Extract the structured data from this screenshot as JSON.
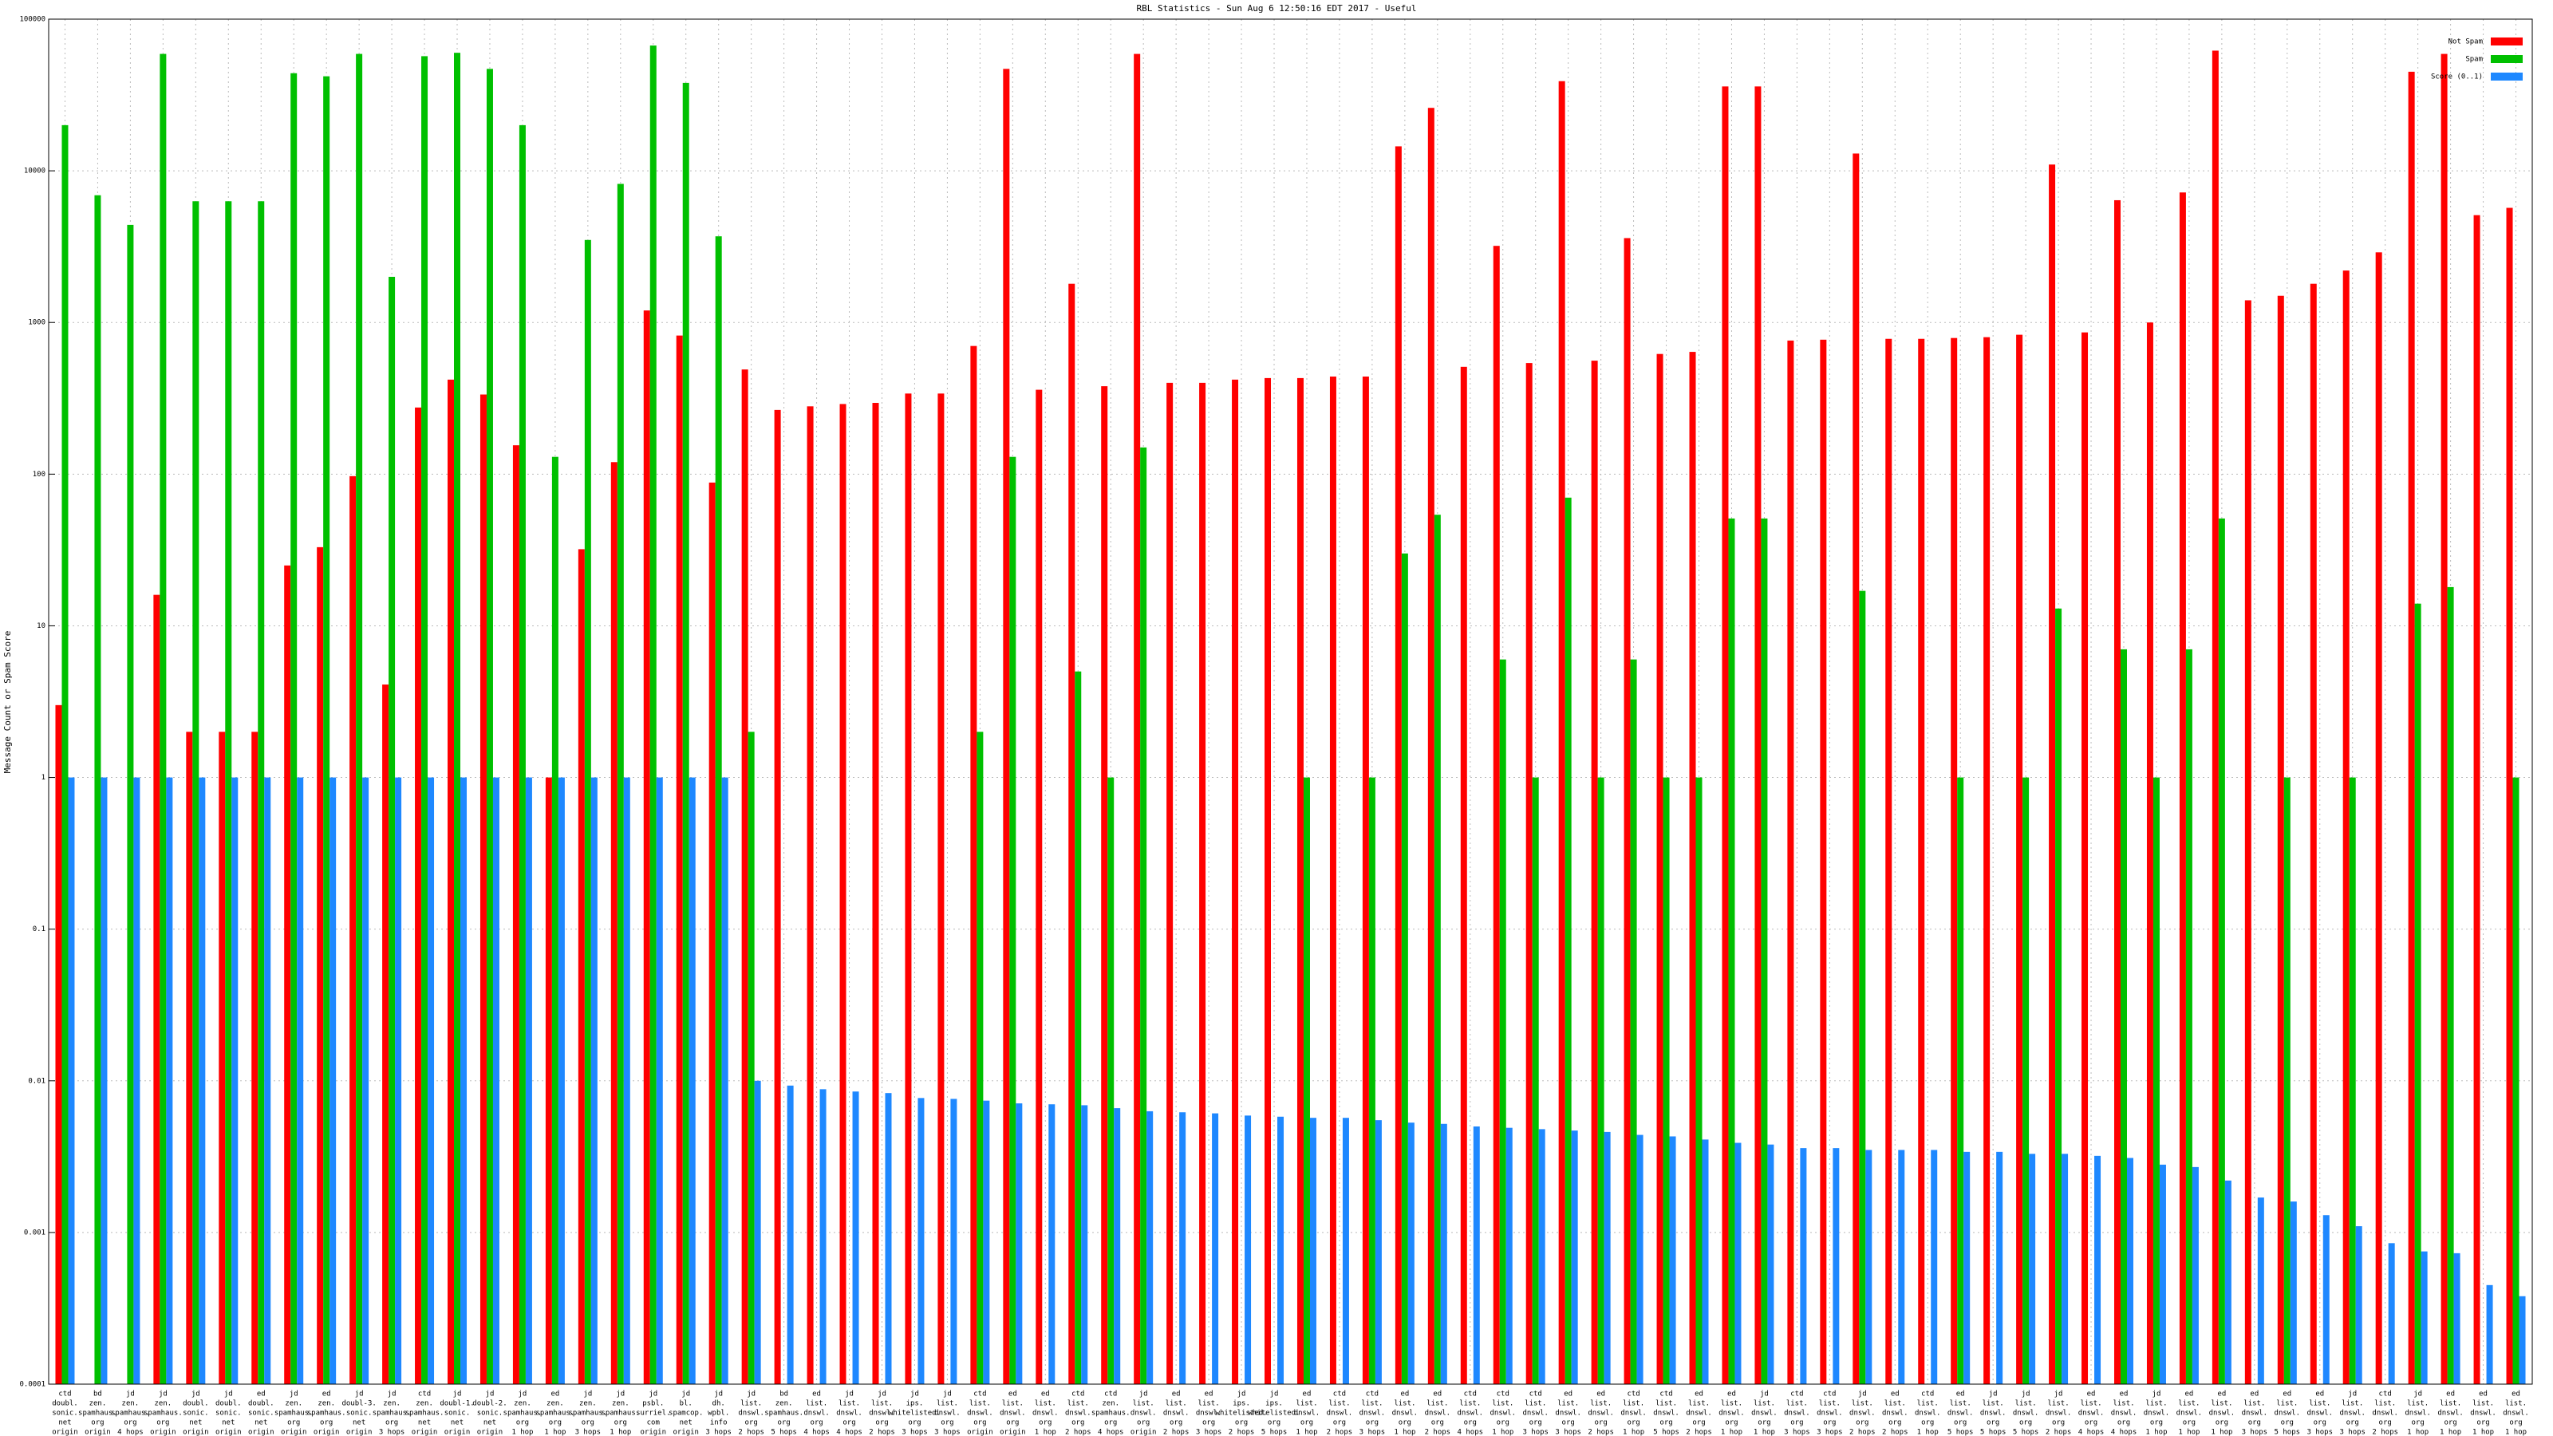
{
  "chart_data": {
    "type": "bar",
    "log_y": true,
    "grid": true,
    "legend": "top-right",
    "title": "RBL Statistics - Sun Aug  6 12:50:16 EDT 2017 - Useful",
    "y_label": "Message Count or Spam Score",
    "ylim": [
      0.0001,
      100000
    ],
    "yticks": [
      0.0001,
      0.001,
      0.01,
      0.1,
      1,
      10,
      100,
      1000,
      10000,
      100000
    ],
    "categories": [
      [
        "ctd",
        "doubl.",
        "sonic.",
        "net",
        "origin"
      ],
      [
        "bd",
        "zen.",
        "spamhaus.",
        "org",
        "origin"
      ],
      [
        "jd",
        "zen.",
        "spamhaus.",
        "org",
        "4 hops"
      ],
      [
        "jd",
        "zen.",
        "spamhaus.",
        "org",
        "origin"
      ],
      [
        "jd",
        "doubl.",
        "sonic.",
        "net",
        "origin"
      ],
      [
        "jd",
        "doubl.",
        "sonic.",
        "net",
        "origin"
      ],
      [
        "ed",
        "doubl.",
        "sonic.",
        "net",
        "origin"
      ],
      [
        "jd",
        "zen.",
        "spamhaus.",
        "org",
        "origin"
      ],
      [
        "ed",
        "zen.",
        "spamhaus.",
        "org",
        "origin"
      ],
      [
        "jd",
        "doubl-3.",
        "sonic.",
        "net",
        "origin"
      ],
      [
        "jd",
        "zen.",
        "spamhaus.",
        "org",
        "3 hops"
      ],
      [
        "ctd",
        "zen.",
        "spamhaus.",
        "net",
        "origin"
      ],
      [
        "jd",
        "doubl-1.",
        "sonic.",
        "net",
        "origin"
      ],
      [
        "jd",
        "doubl-2.",
        "sonic.",
        "net",
        "origin"
      ],
      [
        "jd",
        "zen.",
        "spamhaus.",
        "org",
        "1 hop"
      ],
      [
        "ed",
        "zen.",
        "spamhaus.",
        "org",
        "1 hop"
      ],
      [
        "jd",
        "zen.",
        "spamhaus.",
        "org",
        "3 hops"
      ],
      [
        "jd",
        "zen.",
        "spamhaus.",
        "org",
        "1 hop"
      ],
      [
        "jd",
        "psbl.",
        "surriel.",
        "com",
        "origin"
      ],
      [
        "jd",
        "bl.",
        "spamcop.",
        "net",
        "origin"
      ],
      [
        "jd",
        "dh.",
        "wpbl.",
        "info",
        "3 hops"
      ],
      [
        "jd",
        "list.",
        "dnswl.",
        "org",
        "2 hops"
      ],
      [
        "bd",
        "zen.",
        "spamhaus.",
        "org",
        "5 hops"
      ],
      [
        "ed",
        "list.",
        "dnswl.",
        "org",
        "4 hops"
      ],
      [
        "jd",
        "list.",
        "dnswl.",
        "org",
        "4 hops"
      ],
      [
        "jd",
        "list.",
        "dnswl.",
        "org",
        "2 hops"
      ],
      [
        "jd",
        "ips.",
        "whitelisted.",
        "org",
        "3 hops"
      ],
      [
        "jd",
        "list.",
        "dnswl.",
        "org",
        "3 hops"
      ],
      [
        "ctd",
        "list.",
        "dnswl.",
        "org",
        "origin"
      ],
      [
        "ed",
        "list.",
        "dnswl.",
        "org",
        "origin"
      ],
      [
        "ed",
        "list.",
        "dnswl.",
        "org",
        "1 hop"
      ],
      [
        "ctd",
        "list.",
        "dnswl.",
        "org",
        "2 hops"
      ],
      [
        "ctd",
        "zen.",
        "spamhaus.",
        "org",
        "4 hops"
      ],
      [
        "jd",
        "list.",
        "dnswl.",
        "org",
        "origin"
      ],
      [
        "ed",
        "list.",
        "dnswl.",
        "org",
        "2 hops"
      ],
      [
        "ed",
        "list.",
        "dnswl.",
        "org",
        "3 hops"
      ],
      [
        "jd",
        "ips.",
        "whitelisted.",
        "org",
        "2 hops"
      ],
      [
        "jd",
        "ips.",
        "whitelisted.",
        "org",
        "5 hops"
      ],
      [
        "ed",
        "list.",
        "dnswl.",
        "org",
        "1 hop"
      ],
      [
        "ctd",
        "list.",
        "dnswl.",
        "org",
        "2 hops"
      ],
      [
        "ctd",
        "list.",
        "dnswl.",
        "org",
        "3 hops"
      ],
      [
        "ed",
        "list.",
        "dnswl.",
        "org",
        "1 hop"
      ],
      [
        "ed",
        "list.",
        "dnswl.",
        "org",
        "2 hops"
      ],
      [
        "ctd",
        "list.",
        "dnswl.",
        "org",
        "4 hops"
      ],
      [
        "ctd",
        "list.",
        "dnswl.",
        "org",
        "1 hop"
      ],
      [
        "ctd",
        "list.",
        "dnswl.",
        "org",
        "3 hops"
      ],
      [
        "ed",
        "list.",
        "dnswl.",
        "org",
        "3 hops"
      ],
      [
        "ed",
        "list.",
        "dnswl.",
        "org",
        "2 hops"
      ],
      [
        "ctd",
        "list.",
        "dnswl.",
        "org",
        "1 hop"
      ],
      [
        "ctd",
        "list.",
        "dnswl.",
        "org",
        "5 hops"
      ],
      [
        "ed",
        "list.",
        "dnswl.",
        "org",
        "2 hops"
      ],
      [
        "ed",
        "list.",
        "dnswl.",
        "org",
        "1 hop"
      ],
      [
        "jd",
        "list.",
        "dnswl.",
        "org",
        "1 hop"
      ],
      [
        "ctd",
        "list.",
        "dnswl.",
        "org",
        "3 hops"
      ],
      [
        "ctd",
        "list.",
        "dnswl.",
        "org",
        "3 hops"
      ],
      [
        "jd",
        "list.",
        "dnswl.",
        "org",
        "2 hops"
      ],
      [
        "ed",
        "list.",
        "dnswl.",
        "org",
        "2 hops"
      ],
      [
        "ctd",
        "list.",
        "dnswl.",
        "org",
        "1 hop"
      ],
      [
        "ed",
        "list.",
        "dnswl.",
        "org",
        "5 hops"
      ],
      [
        "jd",
        "list.",
        "dnswl.",
        "org",
        "5 hops"
      ],
      [
        "jd",
        "list.",
        "dnswl.",
        "org",
        "5 hops"
      ],
      [
        "jd",
        "list.",
        "dnswl.",
        "org",
        "2 hops"
      ],
      [
        "ed",
        "list.",
        "dnswl.",
        "org",
        "4 hops"
      ],
      [
        "ed",
        "list.",
        "dnswl.",
        "org",
        "4 hops"
      ],
      [
        "jd",
        "list.",
        "dnswl.",
        "org",
        "1 hop"
      ],
      [
        "ed",
        "list.",
        "dnswl.",
        "org",
        "1 hop"
      ],
      [
        "ed",
        "list.",
        "dnswl.",
        "org",
        "1 hop"
      ],
      [
        "ed",
        "list.",
        "dnswl.",
        "org",
        "3 hops"
      ],
      [
        "ed",
        "list.",
        "dnswl.",
        "org",
        "5 hops"
      ],
      [
        "ed",
        "list.",
        "dnswl.",
        "org",
        "3 hops"
      ],
      [
        "jd",
        "list.",
        "dnswl.",
        "org",
        "3 hops"
      ],
      [
        "ctd",
        "list.",
        "dnswl.",
        "org",
        "2 hops"
      ],
      [
        "jd",
        "list.",
        "dnswl.",
        "org",
        "1 hop"
      ],
      [
        "ed",
        "list.",
        "dnswl.",
        "org",
        "1 hop"
      ],
      [
        "ed",
        "list.",
        "dnswl.",
        "org",
        "1 hop"
      ],
      [
        "ed",
        "list.",
        "dnswl.",
        "org",
        "1 hop"
      ]
    ],
    "series": [
      {
        "name": "Not Spam",
        "color": "#ff0000",
        "values": [
          3,
          null,
          null,
          16,
          2,
          2,
          2,
          25,
          33,
          97,
          4.1,
          275,
          420,
          335,
          155,
          1,
          32,
          120,
          1200,
          820,
          88,
          490,
          265,
          280,
          290,
          295,
          340,
          340,
          700,
          47000,
          360,
          1800,
          380,
          59000,
          400,
          400,
          420,
          430,
          430,
          440,
          440,
          14500,
          26000,
          510,
          3200,
          540,
          39000,
          560,
          3600,
          620,
          640,
          36000,
          36000,
          760,
          770,
          13000,
          780,
          780,
          790,
          800,
          830,
          11000,
          860,
          6400,
          1000,
          7200,
          62000,
          1400,
          1500,
          1800,
          2200,
          2900,
          45000,
          59000,
          5100,
          5700
        ]
      },
      {
        "name": "Spam",
        "color": "#00c000",
        "values": [
          20000,
          6900,
          4400,
          59000,
          6300,
          6300,
          6300,
          44000,
          42000,
          59000,
          2000,
          57000,
          60000,
          47000,
          20000,
          130,
          3500,
          8200,
          67000,
          38000,
          3700,
          2,
          null,
          null,
          null,
          null,
          null,
          null,
          2,
          130,
          null,
          5,
          1,
          150,
          null,
          null,
          null,
          null,
          1,
          null,
          1,
          30,
          54,
          null,
          6,
          1,
          70,
          1,
          6,
          1,
          1,
          51,
          51,
          null,
          null,
          17,
          null,
          null,
          1,
          null,
          1,
          13,
          null,
          7,
          1,
          7,
          51,
          null,
          1,
          null,
          1,
          null,
          14,
          18,
          null,
          1
        ]
      },
      {
        "name": "Score (0..1)",
        "color": "#1e88ff",
        "values": [
          1,
          1,
          1,
          1,
          1,
          1,
          1,
          1,
          1,
          1,
          1,
          1,
          1,
          1,
          1,
          1,
          1,
          1,
          1,
          1,
          1,
          0.01,
          0.0093,
          0.0088,
          0.0085,
          0.0083,
          0.0077,
          0.0076,
          0.0074,
          0.0071,
          0.007,
          0.0069,
          0.0066,
          0.0063,
          0.0062,
          0.0061,
          0.0059,
          0.0058,
          0.0057,
          0.0057,
          0.0055,
          0.0053,
          0.0052,
          0.005,
          0.0049,
          0.0048,
          0.0047,
          0.0046,
          0.0044,
          0.0043,
          0.0041,
          0.0039,
          0.0038,
          0.0036,
          0.0036,
          0.0035,
          0.0035,
          0.0035,
          0.0034,
          0.0034,
          0.0033,
          0.0033,
          0.0032,
          0.0031,
          0.0028,
          0.0027,
          0.0022,
          0.0017,
          0.0016,
          0.0013,
          0.0011,
          0.00085,
          0.00075,
          0.00073,
          0.00045,
          0.00038
        ]
      }
    ]
  }
}
